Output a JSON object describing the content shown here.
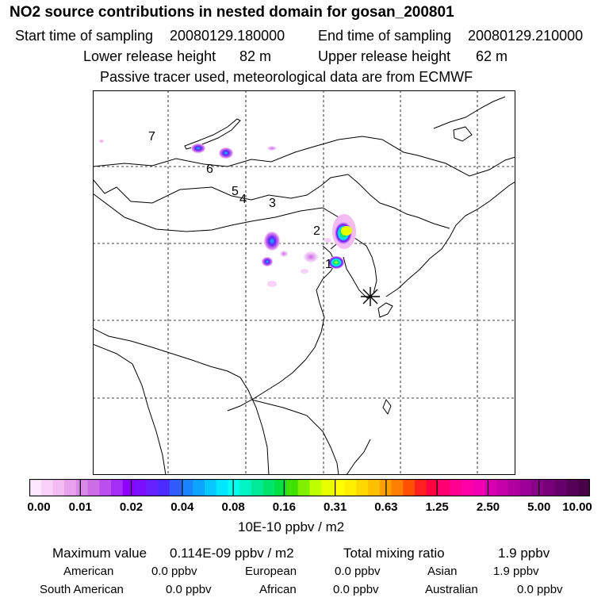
{
  "header": {
    "title": "NO2 source contributions in nested domain for gosan_200801",
    "start_label": "Start time of sampling",
    "start_value": "20080129.180000",
    "end_label": "End time of sampling",
    "end_value": "20080129.210000",
    "lower_label": "Lower release height",
    "lower_value": "82 m",
    "upper_label": "Upper release height",
    "upper_value": "62 m",
    "note": "Passive tracer used, meteorological data are from ECMWF"
  },
  "map": {
    "labels": [
      "7",
      "6",
      "5",
      "4",
      "3",
      "2",
      "1"
    ],
    "receptor_icon": "asterisk-icon"
  },
  "colorbar": {
    "ticks": [
      "0.00",
      "0.01",
      "0.02",
      "0.04",
      "0.08",
      "0.16",
      "0.31",
      "0.63",
      "1.25",
      "2.50",
      "5.00",
      "10.00"
    ],
    "colors": [
      "#fde9fd",
      "#f8d2f8",
      "#f2bbf2",
      "#eaa2ee",
      "#d98ae9",
      "#cc6fe6",
      "#bb4ff0",
      "#a52df6",
      "#8d00ff",
      "#7a10ff",
      "#6620ff",
      "#4d2bff",
      "#2f5bff",
      "#1a84ff",
      "#0ea4ff",
      "#06c8ff",
      "#00e8ff",
      "#00ffee",
      "#00f4c4",
      "#00ea98",
      "#00e46c",
      "#00e040",
      "#40e000",
      "#80f000",
      "#c0ff00",
      "#e8ff00",
      "#ffff00",
      "#fff000",
      "#ffd800",
      "#ffc000",
      "#ffa000",
      "#ff8000",
      "#ff5000",
      "#ff2020",
      "#ff0040",
      "#ff0070",
      "#ff0090",
      "#ff00a8",
      "#f000b0",
      "#d800b0",
      "#c400a8",
      "#b000a0",
      "#9c0096",
      "#880088",
      "#760078",
      "#66006a",
      "#560058",
      "#480048"
    ],
    "unit": "10E-10 ppbv / m2"
  },
  "stats": {
    "max_label": "Maximum value",
    "max_value": "0.114E-09 ppbv / m2",
    "total_label": "Total mixing ratio",
    "total_value": "1.9 ppbv"
  },
  "regions": [
    {
      "name": "American",
      "value": "0.0 ppbv"
    },
    {
      "name": "European",
      "value": "0.0 ppbv"
    },
    {
      "name": "Asian",
      "value": "1.9 ppbv"
    },
    {
      "name": "South American",
      "value": "0.0 ppbv"
    },
    {
      "name": "African",
      "value": "0.0 ppbv"
    },
    {
      "name": "Australian",
      "value": "0.0 ppbv"
    }
  ]
}
